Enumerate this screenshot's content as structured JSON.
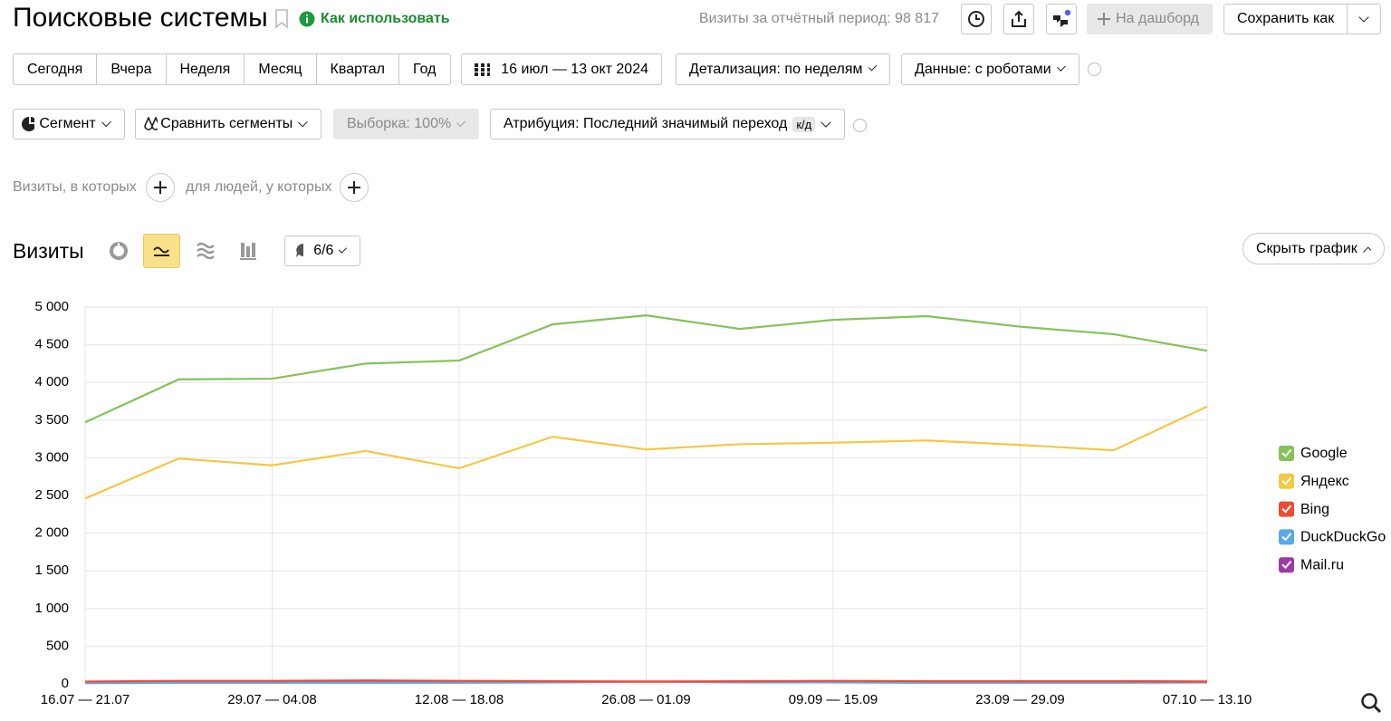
{
  "header": {
    "title": "Поисковые системы",
    "how_to": "Как использовать",
    "visits_total": "Визиты за отчётный период: 98 817",
    "dashboard": "На дашборд",
    "save_as": "Сохранить как"
  },
  "periods": [
    "Сегодня",
    "Вчера",
    "Неделя",
    "Месяц",
    "Квартал",
    "Год"
  ],
  "date_range": "16 июл — 13 окт 2024",
  "detail": "Детализация: по неделям",
  "data_mode": "Данные: с роботами",
  "segment": "Сегмент",
  "compare": "Сравнить сегменты",
  "sample": "Выборка: 100%",
  "attribution": "Атрибуция: Последний значимый переход",
  "attribution_badge": "к/д",
  "filter": {
    "visits_where": "Визиты, в которых",
    "people_where": "для людей, у которых"
  },
  "chart_header": {
    "title": "Визиты",
    "series_count": "6/6",
    "hide": "Скрыть график"
  },
  "chart_data": {
    "type": "line",
    "categories": [
      "16.07 — 21.07",
      null,
      "29.07 — 04.08",
      null,
      "12.08 — 18.08",
      null,
      "26.08 — 01.09",
      null,
      "09.09 — 15.09",
      null,
      "23.09 — 29.09",
      null,
      "07.10 — 13.10"
    ],
    "series": [
      {
        "name": "Google",
        "color": "#86c25a",
        "values": [
          3470,
          4040,
          4050,
          4250,
          4290,
          4770,
          4890,
          4710,
          4830,
          4880,
          4740,
          4640,
          4420
        ]
      },
      {
        "name": "Яндекс",
        "color": "#f4c844",
        "values": [
          2460,
          2990,
          2900,
          3090,
          2860,
          3280,
          3110,
          3180,
          3200,
          3230,
          3170,
          3100,
          3680
        ]
      },
      {
        "name": "Bing",
        "color": "#ef4b35",
        "values": [
          30,
          40,
          40,
          45,
          40,
          35,
          30,
          35,
          40,
          35,
          35,
          35,
          30
        ]
      },
      {
        "name": "DuckDuckGo",
        "color": "#5aa9e6",
        "values": [
          10,
          15,
          15,
          15,
          15,
          20,
          30,
          20,
          20,
          15,
          15,
          15,
          20
        ]
      },
      {
        "name": "Mail.ru",
        "color": "#9c3aa6",
        "values": [
          20,
          30,
          30,
          40,
          35,
          30,
          30,
          30,
          35,
          35,
          35,
          35,
          30
        ]
      }
    ],
    "ylim": [
      0,
      5000
    ],
    "yticks": [
      0,
      500,
      {
        "value": 1000,
        "label": "1 000"
      },
      {
        "value": 1500,
        "label": "1 500"
      },
      {
        "value": 2000,
        "label": "2 000"
      },
      {
        "value": 2500,
        "label": "2 500"
      },
      {
        "value": 3000,
        "label": "3 000"
      },
      {
        "value": 3500,
        "label": "3 500"
      },
      {
        "value": 4000,
        "label": "4 000"
      },
      {
        "value": 4500,
        "label": "4 500"
      },
      {
        "value": 5000,
        "label": "5 000"
      }
    ],
    "grid": true,
    "legend": "right"
  }
}
